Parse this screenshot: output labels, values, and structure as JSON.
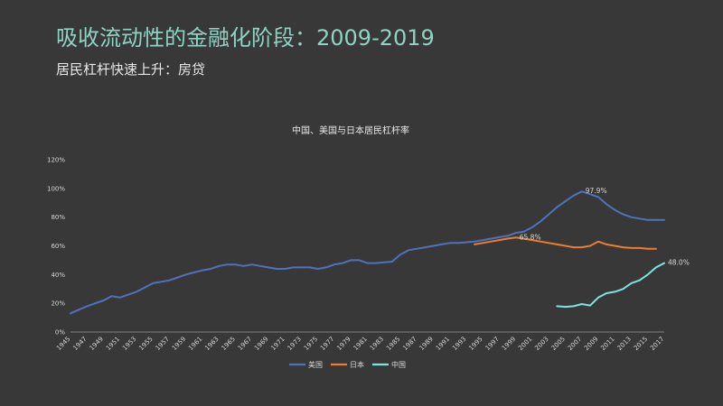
{
  "slide": {
    "title": "吸收流动性的金融化阶段：2009-2019",
    "subtitle": "居民杠杆快速上升：房贷"
  },
  "chart_data": {
    "type": "line",
    "title": "中国、美国与日本居民杠杆率",
    "x_tick_labels": [
      "1945",
      "1947",
      "1949",
      "1951",
      "1953",
      "1955",
      "1957",
      "1959",
      "1961",
      "1963",
      "1965",
      "1967",
      "1969",
      "1971",
      "1973",
      "1975",
      "1977",
      "1979",
      "1981",
      "1983",
      "1985",
      "1987",
      "1989",
      "1991",
      "1993",
      "1995",
      "1997",
      "1999",
      "2001",
      "2003",
      "2005",
      "2007",
      "2009",
      "2011",
      "2013",
      "2015",
      "2017"
    ],
    "xlim": [
      1945,
      2017
    ],
    "ylim": [
      0,
      120
    ],
    "y_ticks": [
      0,
      20,
      40,
      60,
      80,
      100,
      120
    ],
    "y_tick_labels": [
      "0%",
      "20%",
      "40%",
      "60%",
      "80%",
      "100%",
      "120%"
    ],
    "grid": false,
    "legend_position": "bottom",
    "series": [
      {
        "name": "美国",
        "color": "#4f72be",
        "points": [
          [
            1945,
            13
          ],
          [
            1946,
            15.5
          ],
          [
            1947,
            18
          ],
          [
            1948,
            20
          ],
          [
            1949,
            22
          ],
          [
            1950,
            25
          ],
          [
            1951,
            24
          ],
          [
            1952,
            26
          ],
          [
            1953,
            28
          ],
          [
            1954,
            31
          ],
          [
            1955,
            34
          ],
          [
            1956,
            35
          ],
          [
            1957,
            36
          ],
          [
            1958,
            38
          ],
          [
            1959,
            40
          ],
          [
            1960,
            41.5
          ],
          [
            1961,
            43
          ],
          [
            1962,
            44
          ],
          [
            1963,
            46
          ],
          [
            1964,
            47
          ],
          [
            1965,
            47
          ],
          [
            1966,
            46
          ],
          [
            1967,
            47
          ],
          [
            1968,
            46
          ],
          [
            1969,
            45
          ],
          [
            1970,
            44
          ],
          [
            1971,
            44
          ],
          [
            1972,
            45
          ],
          [
            1973,
            45
          ],
          [
            1974,
            45
          ],
          [
            1975,
            44
          ],
          [
            1976,
            45
          ],
          [
            1977,
            47
          ],
          [
            1978,
            48
          ],
          [
            1979,
            50
          ],
          [
            1980,
            50
          ],
          [
            1981,
            48
          ],
          [
            1982,
            48
          ],
          [
            1983,
            48.5
          ],
          [
            1984,
            49
          ],
          [
            1985,
            54
          ],
          [
            1986,
            57
          ],
          [
            1987,
            58
          ],
          [
            1988,
            59
          ],
          [
            1989,
            60
          ],
          [
            1990,
            61
          ],
          [
            1991,
            62
          ],
          [
            1992,
            62
          ],
          [
            1993,
            62.5
          ],
          [
            1994,
            63
          ],
          [
            1995,
            64
          ],
          [
            1996,
            65
          ],
          [
            1997,
            66
          ],
          [
            1998,
            67
          ],
          [
            1999,
            69
          ],
          [
            2000,
            70
          ],
          [
            2001,
            73
          ],
          [
            2002,
            77
          ],
          [
            2003,
            82
          ],
          [
            2004,
            87
          ],
          [
            2005,
            91
          ],
          [
            2006,
            95
          ],
          [
            2007,
            97.9
          ],
          [
            2008,
            96
          ],
          [
            2009,
            94
          ],
          [
            2010,
            89
          ],
          [
            2011,
            85
          ],
          [
            2012,
            82
          ],
          [
            2013,
            80
          ],
          [
            2014,
            79
          ],
          [
            2015,
            78
          ],
          [
            2016,
            78
          ],
          [
            2017,
            78
          ]
        ]
      },
      {
        "name": "日本",
        "color": "#ed7d31",
        "points": [
          [
            1994,
            61
          ],
          [
            1995,
            62
          ],
          [
            1996,
            63
          ],
          [
            1997,
            64
          ],
          [
            1998,
            65
          ],
          [
            1999,
            65.8
          ],
          [
            2000,
            65
          ],
          [
            2001,
            64
          ],
          [
            2002,
            63
          ],
          [
            2003,
            62
          ],
          [
            2004,
            61
          ],
          [
            2005,
            60
          ],
          [
            2006,
            59
          ],
          [
            2007,
            59
          ],
          [
            2008,
            60
          ],
          [
            2009,
            63
          ],
          [
            2010,
            61
          ],
          [
            2011,
            60
          ],
          [
            2012,
            59
          ],
          [
            2013,
            58.5
          ],
          [
            2014,
            58.5
          ],
          [
            2015,
            58
          ],
          [
            2016,
            58
          ]
        ]
      },
      {
        "name": "中国",
        "color": "#7fe3e0",
        "points": [
          [
            2004,
            18
          ],
          [
            2005,
            17.5
          ],
          [
            2006,
            18
          ],
          [
            2007,
            19.5
          ],
          [
            2008,
            18.5
          ],
          [
            2009,
            24
          ],
          [
            2010,
            27
          ],
          [
            2011,
            28
          ],
          [
            2012,
            30
          ],
          [
            2013,
            34
          ],
          [
            2014,
            36
          ],
          [
            2015,
            40
          ],
          [
            2016,
            45
          ],
          [
            2017,
            48.0
          ]
        ]
      }
    ],
    "annotations": [
      {
        "text": "97.9%",
        "x": 2007,
        "y": 97.9
      },
      {
        "text": "65.8%",
        "x": 1999,
        "y": 65.8
      },
      {
        "text": "48.0%",
        "x": 2017,
        "y": 48.0
      }
    ]
  }
}
